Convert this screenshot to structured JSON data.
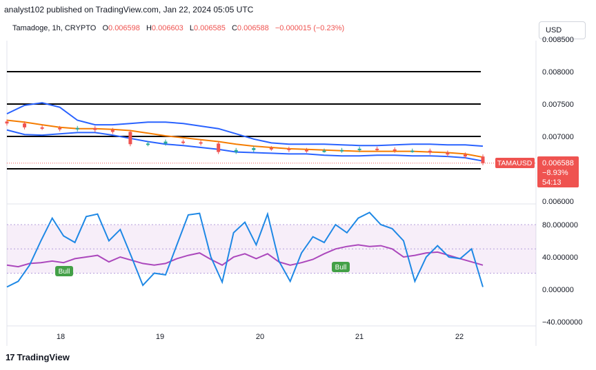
{
  "header": {
    "published": "analyst102 published on TradingView.com, Jan 22, 2024 05:05 UTC",
    "currency_button": "USD"
  },
  "legend": {
    "symbol": "Tamadoge, 1h, CRYPTO",
    "open_label": "O",
    "open": "0.006598",
    "high_label": "H",
    "high": "0.006603",
    "low_label": "L",
    "low": "0.006585",
    "close_label": "C",
    "close": "0.006588",
    "change": "−0.000015 (−0.23%)"
  },
  "price_badge": {
    "ticker": "TAMAUSD",
    "price": "0.006588",
    "change_pct": "−8.93%",
    "countdown": "54:13"
  },
  "footer": {
    "brand": "TradingView"
  },
  "colors": {
    "up": "#26a69a",
    "down": "#ef5350",
    "bollinger": "#2962ff",
    "ema": "#f57c00",
    "stoch_k": "#1e88e5",
    "stoch_d": "#ab47bc",
    "badge": "#ef5350",
    "bull": "#43a047"
  },
  "chart_data": [
    {
      "type": "candlestick",
      "symbol": "TAMAUSD",
      "interval": "1h",
      "x_ticks": [
        "18",
        "19",
        "20",
        "21",
        "22"
      ],
      "y_ticks": [
        "0.006000",
        "0.006588",
        "0.007000",
        "0.007500",
        "0.008000",
        "0.008500"
      ],
      "ylim": [
        0.0058,
        0.0085
      ],
      "horizontal_levels": [
        0.008,
        0.0075,
        0.007,
        0.0065
      ],
      "bollinger_upper": [
        0.00735,
        0.00748,
        0.00752,
        0.00745,
        0.00725,
        0.00718,
        0.00718,
        0.0072,
        0.00722,
        0.00722,
        0.0072,
        0.00716,
        0.00712,
        0.00704,
        0.00696,
        0.0069,
        0.00688,
        0.00688,
        0.00688,
        0.00687,
        0.00686,
        0.00686,
        0.00687,
        0.00688,
        0.00688,
        0.00687,
        0.00687,
        0.00685
      ],
      "bollinger_lower": [
        0.0071,
        0.00703,
        0.00702,
        0.00704,
        0.00706,
        0.00706,
        0.00702,
        0.00697,
        0.00692,
        0.00688,
        0.00686,
        0.00683,
        0.0068,
        0.00676,
        0.00675,
        0.00674,
        0.00673,
        0.00673,
        0.00671,
        0.0067,
        0.0067,
        0.00671,
        0.00671,
        0.0067,
        0.0067,
        0.00669,
        0.00667,
        0.00662
      ],
      "ema": [
        0.00725,
        0.00722,
        0.00718,
        0.00714,
        0.00712,
        0.00712,
        0.00711,
        0.00709,
        0.00705,
        0.00701,
        0.00698,
        0.00695,
        0.00692,
        0.00688,
        0.00685,
        0.00683,
        0.00681,
        0.0068,
        0.00679,
        0.00678,
        0.00677,
        0.00677,
        0.00677,
        0.00677,
        0.00676,
        0.00675,
        0.00673,
        0.00668
      ],
      "close": [
        0.0072,
        0.00714,
        0.00713,
        0.00711,
        0.00713,
        0.0071,
        0.00707,
        0.00688,
        0.00689,
        0.00692,
        0.00691,
        0.00689,
        0.00676,
        0.00679,
        0.00682,
        0.00681,
        0.00679,
        0.00678,
        0.00678,
        0.00679,
        0.00681,
        0.0068,
        0.00678,
        0.00678,
        0.00675,
        0.00672,
        0.00669,
        0.006588
      ]
    },
    {
      "type": "line",
      "indicator": "stochastic",
      "y_ticks": [
        "80.000000",
        "40.000000",
        "0.000000",
        "−40.000000"
      ],
      "ylim": [
        -45,
        100
      ],
      "band": [
        20,
        80
      ],
      "annotations": [
        "Bull",
        "Bull"
      ],
      "series": [
        {
          "values": [
            3,
            10,
            30,
            60,
            88,
            66,
            58,
            90,
            93,
            60,
            74,
            40,
            5,
            20,
            18,
            55,
            92,
            94,
            40,
            9,
            70,
            83,
            55,
            93,
            35,
            10,
            45,
            65,
            58,
            80,
            70,
            88,
            95,
            80,
            75,
            60,
            10,
            40,
            54,
            40,
            38,
            50,
            3
          ]
        },
        {
          "values": [
            30,
            28,
            32,
            33,
            35,
            33,
            38,
            40,
            42,
            34,
            40,
            36,
            32,
            30,
            32,
            38,
            42,
            45,
            37,
            30,
            40,
            44,
            38,
            44,
            34,
            30,
            33,
            37,
            44,
            50,
            53,
            55,
            53,
            54,
            50,
            40,
            42,
            45,
            46,
            42,
            38,
            34,
            30
          ]
        }
      ]
    }
  ]
}
